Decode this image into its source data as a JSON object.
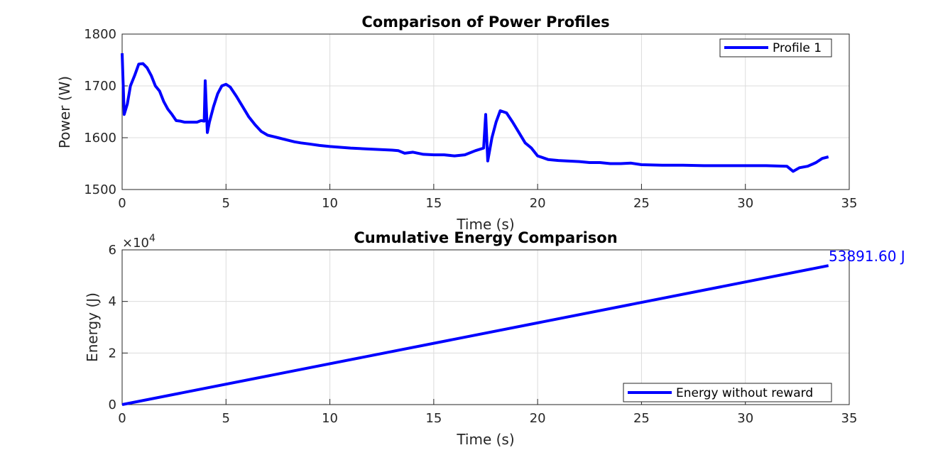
{
  "chart_data": [
    {
      "type": "line",
      "title": "Comparison of Power Profiles",
      "xlabel": "Time (s)",
      "ylabel": "Power (W)",
      "xlim": [
        0,
        35
      ],
      "ylim": [
        1500,
        1800
      ],
      "xticks": [
        0,
        5,
        10,
        15,
        20,
        25,
        30,
        35
      ],
      "yticks": [
        1500,
        1600,
        1700,
        1800
      ],
      "grid": true,
      "legend_position": "top-right",
      "series": [
        {
          "name": "Profile 1",
          "color": "#0000ff",
          "x": [
            0,
            0.1,
            0.25,
            0.4,
            0.6,
            0.8,
            1.0,
            1.2,
            1.4,
            1.6,
            1.8,
            2.0,
            2.2,
            2.4,
            2.6,
            2.8,
            3.0,
            3.2,
            3.4,
            3.6,
            3.8,
            3.95,
            4.0,
            4.1,
            4.2,
            4.4,
            4.6,
            4.8,
            5.0,
            5.2,
            5.5,
            5.8,
            6.1,
            6.4,
            6.7,
            7.0,
            7.5,
            8.0,
            8.3,
            8.6,
            9.0,
            9.5,
            10.0,
            11.0,
            12.0,
            13.0,
            13.3,
            13.6,
            14.0,
            14.5,
            15.0,
            15.5,
            16.0,
            16.5,
            17.0,
            17.4,
            17.5,
            17.6,
            17.8,
            18.0,
            18.2,
            18.5,
            18.8,
            19.1,
            19.4,
            19.7,
            20.0,
            20.5,
            21.0,
            22.0,
            22.5,
            23.0,
            23.5,
            24.0,
            24.5,
            25.0,
            26.0,
            27.0,
            28.0,
            29.0,
            30.0,
            31.0,
            32.0,
            32.3,
            32.6,
            33.0,
            33.4,
            33.7,
            34.0
          ],
          "values": [
            1763,
            1645,
            1665,
            1700,
            1720,
            1742,
            1743,
            1735,
            1720,
            1700,
            1690,
            1670,
            1655,
            1645,
            1633,
            1632,
            1630,
            1630,
            1630,
            1630,
            1633,
            1632,
            1710,
            1610,
            1630,
            1660,
            1685,
            1700,
            1703,
            1698,
            1680,
            1660,
            1640,
            1625,
            1612,
            1605,
            1600,
            1595,
            1592,
            1590,
            1588,
            1585,
            1583,
            1580,
            1578,
            1576,
            1575,
            1570,
            1572,
            1568,
            1567,
            1567,
            1565,
            1567,
            1575,
            1580,
            1645,
            1555,
            1600,
            1630,
            1652,
            1648,
            1630,
            1610,
            1590,
            1580,
            1565,
            1558,
            1556,
            1554,
            1552,
            1552,
            1550,
            1550,
            1551,
            1548,
            1547,
            1547,
            1546,
            1546,
            1546,
            1546,
            1545,
            1535,
            1542,
            1545,
            1552,
            1560,
            1563
          ]
        }
      ]
    },
    {
      "type": "line",
      "title": "Cumulative Energy Comparison",
      "xlabel": "Time (s)",
      "ylabel": "Energy (J)",
      "xlim": [
        0,
        35
      ],
      "ylim": [
        0,
        60000
      ],
      "xticks": [
        0,
        5,
        10,
        15,
        20,
        25,
        30,
        35
      ],
      "yticks": [
        0,
        2,
        4,
        6
      ],
      "y_exponent_label": "×10",
      "y_exponent": "4",
      "y_scale": 10000,
      "grid": true,
      "legend_position": "bottom-right",
      "annotation": "53891.60 J",
      "series": [
        {
          "name": "Energy without reward",
          "color": "#0000ff",
          "x": [
            0,
            34
          ],
          "values": [
            0,
            53891.6
          ]
        }
      ]
    }
  ]
}
